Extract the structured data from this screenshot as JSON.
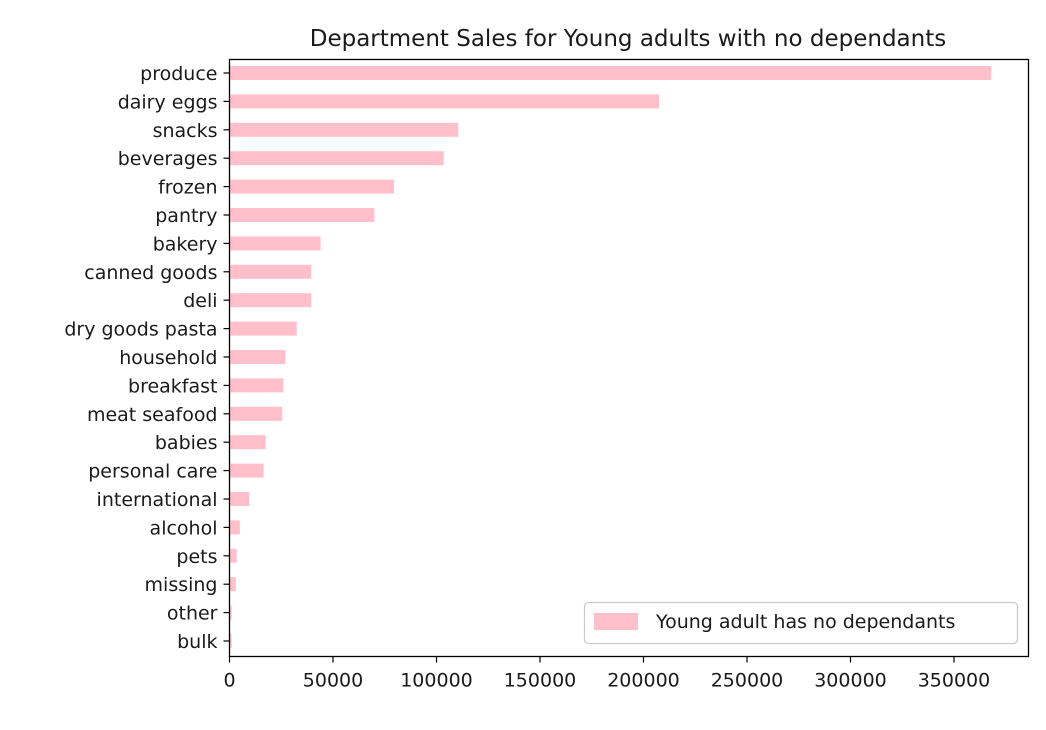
{
  "chart_data": {
    "type": "bar",
    "orientation": "horizontal",
    "title": "Department Sales for Young adults with no dependants",
    "xlabel": "",
    "ylabel": "",
    "categories": [
      "produce",
      "dairy eggs",
      "snacks",
      "beverages",
      "frozen",
      "pantry",
      "bakery",
      "canned goods",
      "deli",
      "dry goods pasta",
      "household",
      "breakfast",
      "meat seafood",
      "babies",
      "personal care",
      "international",
      "alcohol",
      "pets",
      "missing",
      "other",
      "bulk"
    ],
    "series": [
      {
        "name": "Young adult has no dependants",
        "color": "#ffc0cb",
        "values": [
          368000,
          207500,
          110500,
          103500,
          79500,
          70000,
          44000,
          39500,
          39500,
          32500,
          27000,
          26000,
          25500,
          17500,
          16500,
          9500,
          5000,
          3500,
          3000,
          1000,
          1000
        ]
      }
    ],
    "xlim": [
      0,
      386000
    ],
    "xticks": [
      0,
      50000,
      100000,
      150000,
      200000,
      250000,
      300000,
      350000
    ],
    "xtick_labels": [
      "0",
      "50000",
      "100000",
      "150000",
      "200000",
      "250000",
      "300000",
      "350000"
    ],
    "grid": false,
    "legend_position": "lower-right"
  }
}
